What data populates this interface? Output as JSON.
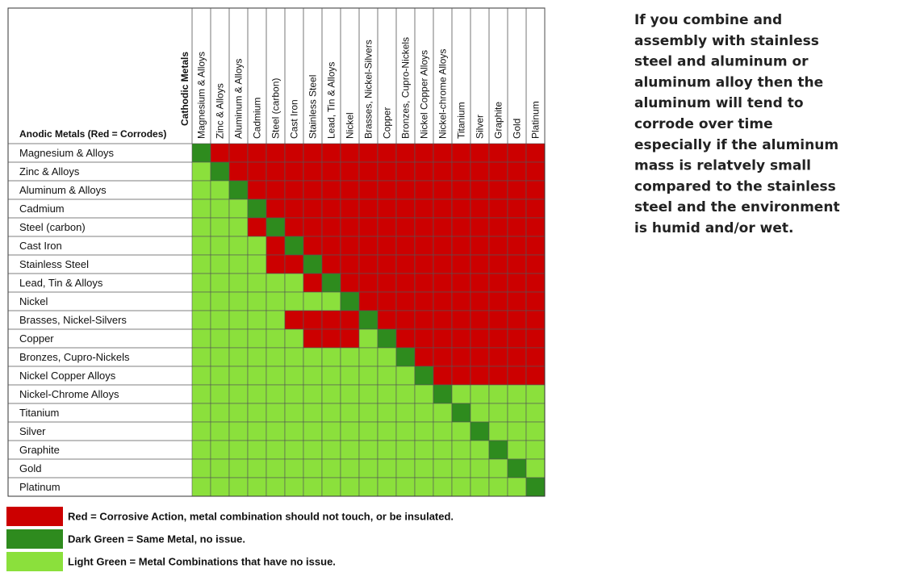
{
  "table": {
    "corner_row_title": "Anodic Metals (Red = Corrodes)",
    "corner_col_title": "Cathodic Metals",
    "columns": [
      "Magnesium & Alloys",
      "Zinc & Alloys",
      "Aluminum & Alloys",
      "Cadmium",
      "Steel (carbon)",
      "Cast Iron",
      "Stainless Steel",
      "Lead, Tin & Alloys",
      "Nickel",
      "Brasses, Nickel-Silvers",
      "Copper",
      "Bronzes, Cupro-Nickels",
      "Nickel Copper Alloys",
      "Nickel-chrome Alloys",
      "Titanium",
      "Silver",
      "Graphite",
      "Gold",
      "Platinum"
    ],
    "rows": [
      "Magnesium & Alloys",
      "Zinc & Alloys",
      "Aluminum & Alloys",
      "Cadmium",
      "Steel (carbon)",
      "Cast Iron",
      "Stainless Steel",
      "Lead, Tin & Alloys",
      "Nickel",
      "Brasses, Nickel-Silvers",
      "Copper",
      "Bronzes, Cupro-Nickels",
      "Nickel Copper Alloys",
      "Nickel-Chrome Alloys",
      "Titanium",
      "Silver",
      "Graphite",
      "Gold",
      "Platinum"
    ],
    "cells": [
      [
        1,
        0,
        0,
        0,
        0,
        0,
        0,
        0,
        0,
        0,
        0,
        0,
        0,
        0,
        0,
        0,
        0,
        0,
        0
      ],
      [
        2,
        1,
        0,
        0,
        0,
        0,
        0,
        0,
        0,
        0,
        0,
        0,
        0,
        0,
        0,
        0,
        0,
        0,
        0
      ],
      [
        2,
        2,
        1,
        0,
        0,
        0,
        0,
        0,
        0,
        0,
        0,
        0,
        0,
        0,
        0,
        0,
        0,
        0,
        0
      ],
      [
        2,
        2,
        2,
        1,
        0,
        0,
        0,
        0,
        0,
        0,
        0,
        0,
        0,
        0,
        0,
        0,
        0,
        0,
        0
      ],
      [
        2,
        2,
        2,
        0,
        1,
        0,
        0,
        0,
        0,
        0,
        0,
        0,
        0,
        0,
        0,
        0,
        0,
        0,
        0
      ],
      [
        2,
        2,
        2,
        2,
        0,
        1,
        0,
        0,
        0,
        0,
        0,
        0,
        0,
        0,
        0,
        0,
        0,
        0,
        0
      ],
      [
        2,
        2,
        2,
        2,
        0,
        0,
        1,
        0,
        0,
        0,
        0,
        0,
        0,
        0,
        0,
        0,
        0,
        0,
        0
      ],
      [
        2,
        2,
        2,
        2,
        2,
        2,
        0,
        1,
        0,
        0,
        0,
        0,
        0,
        0,
        0,
        0,
        0,
        0,
        0
      ],
      [
        2,
        2,
        2,
        2,
        2,
        2,
        2,
        2,
        1,
        0,
        0,
        0,
        0,
        0,
        0,
        0,
        0,
        0,
        0
      ],
      [
        2,
        2,
        2,
        2,
        2,
        0,
        0,
        0,
        0,
        1,
        0,
        0,
        0,
        0,
        0,
        0,
        0,
        0,
        0
      ],
      [
        2,
        2,
        2,
        2,
        2,
        2,
        0,
        0,
        0,
        2,
        1,
        0,
        0,
        0,
        0,
        0,
        0,
        0,
        0
      ],
      [
        2,
        2,
        2,
        2,
        2,
        2,
        2,
        2,
        2,
        2,
        2,
        1,
        0,
        0,
        0,
        0,
        0,
        0,
        0
      ],
      [
        2,
        2,
        2,
        2,
        2,
        2,
        2,
        2,
        2,
        2,
        2,
        2,
        1,
        0,
        0,
        0,
        0,
        0,
        0
      ],
      [
        2,
        2,
        2,
        2,
        2,
        2,
        2,
        2,
        2,
        2,
        2,
        2,
        2,
        1,
        2,
        2,
        2,
        2,
        2
      ],
      [
        2,
        2,
        2,
        2,
        2,
        2,
        2,
        2,
        2,
        2,
        2,
        2,
        2,
        2,
        1,
        2,
        2,
        2,
        2
      ],
      [
        2,
        2,
        2,
        2,
        2,
        2,
        2,
        2,
        2,
        2,
        2,
        2,
        2,
        2,
        2,
        1,
        2,
        2,
        2
      ],
      [
        2,
        2,
        2,
        2,
        2,
        2,
        2,
        2,
        2,
        2,
        2,
        2,
        2,
        2,
        2,
        2,
        1,
        2,
        2
      ],
      [
        2,
        2,
        2,
        2,
        2,
        2,
        2,
        2,
        2,
        2,
        2,
        2,
        2,
        2,
        2,
        2,
        2,
        1,
        2
      ],
      [
        2,
        2,
        2,
        2,
        2,
        2,
        2,
        2,
        2,
        2,
        2,
        2,
        2,
        2,
        2,
        2,
        2,
        2,
        1
      ]
    ]
  },
  "legend": [
    {
      "label": "Red = Corrosive Action, metal combination should not touch, or be insulated.",
      "color": "#cc0000"
    },
    {
      "label": "Dark Green = Same Metal, no issue.",
      "color": "#2e8b1e"
    },
    {
      "label": "Light Green = Metal Combinations that have no issue.",
      "color": "#8be03c"
    }
  ],
  "note": {
    "lines": [
      "If you combine and",
      "assembly with stainless",
      "steel and aluminum or",
      "aluminum alloy then the",
      "aluminum will tend to",
      "corrode over time",
      "especially if the aluminum",
      "mass is relatvely small",
      "compared to the stainless",
      "steel and the environment",
      "is humid and/or wet."
    ]
  }
}
